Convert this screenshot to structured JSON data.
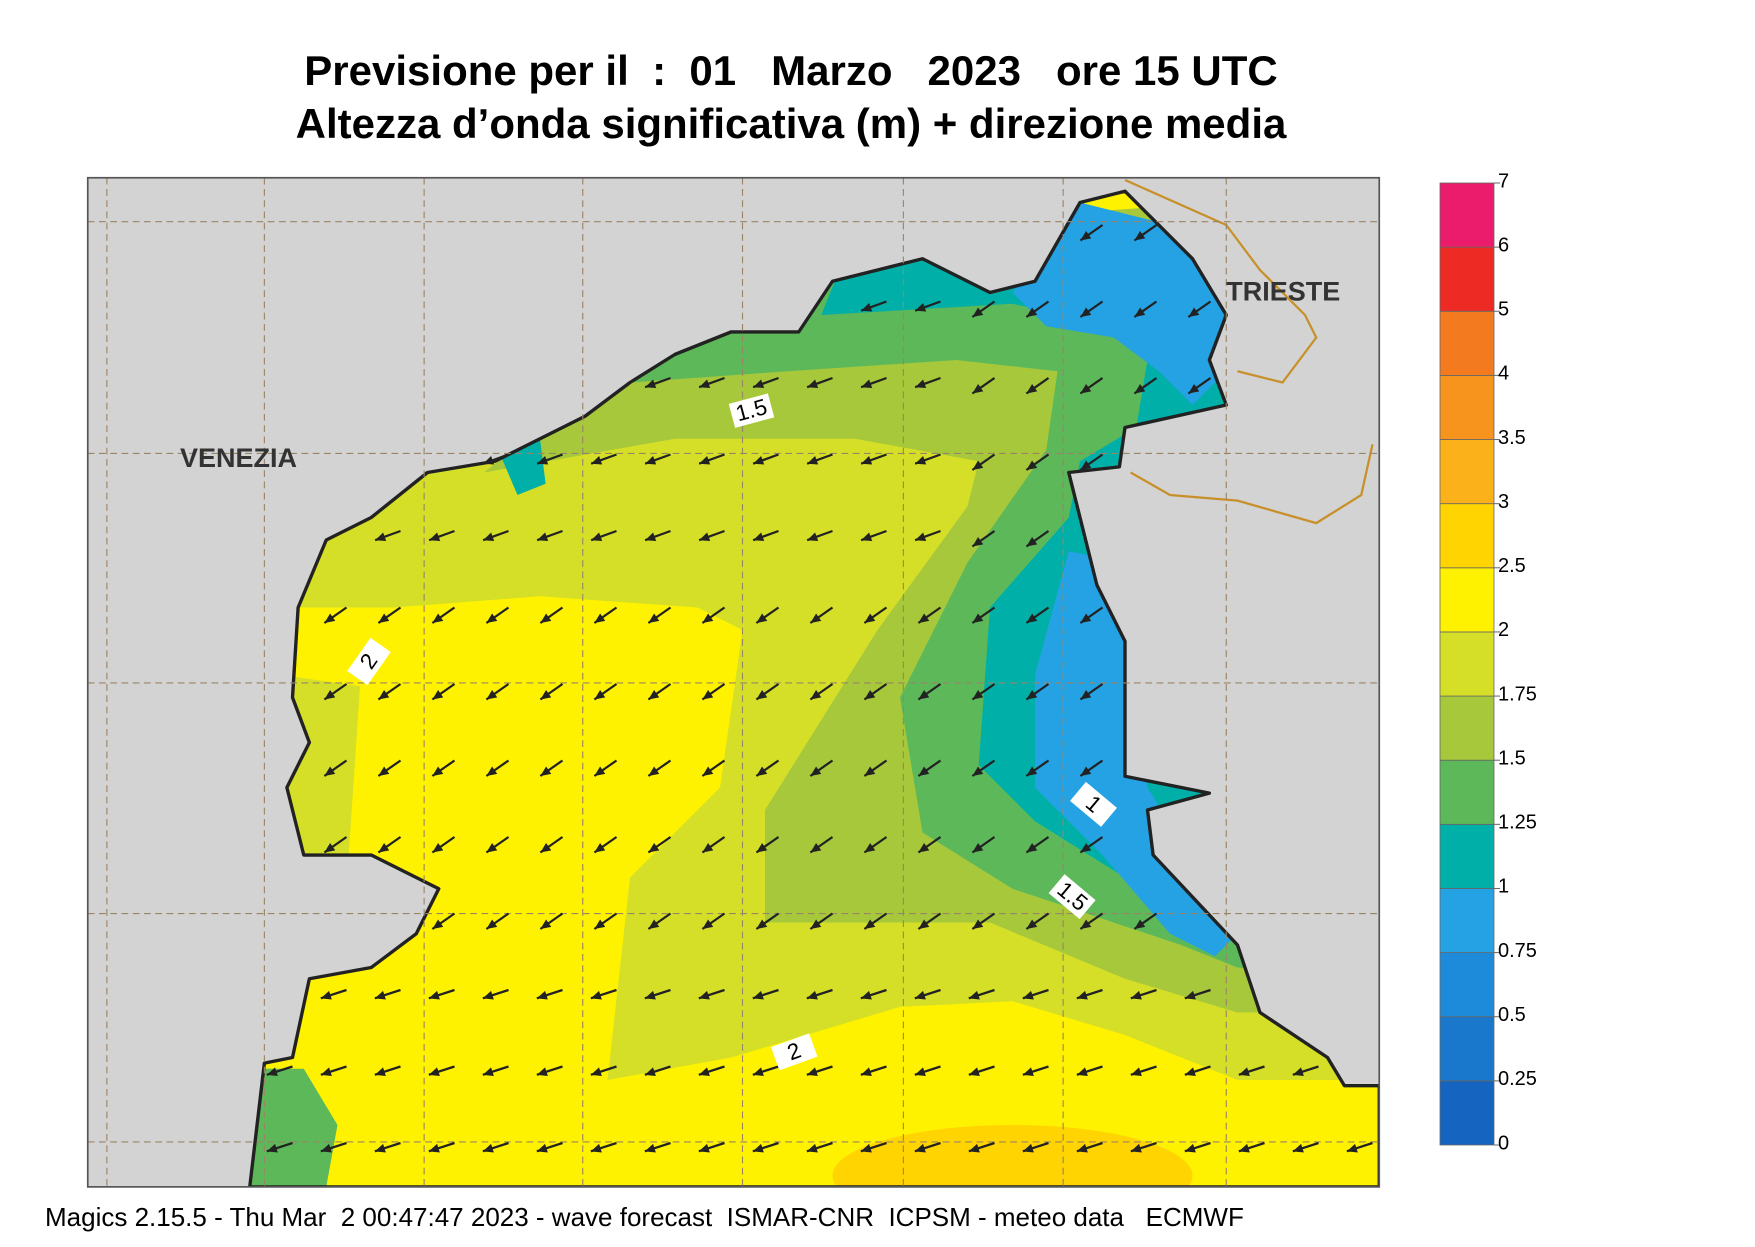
{
  "title": {
    "line1": "Previsione per il  :  01   Marzo   2023   ore 15 UTC",
    "line2": "Altezza d’onda significativa (m) + direzione media"
  },
  "map": {
    "places": [
      "VENEZIA",
      "TRIESTE"
    ],
    "contour_labels": [
      "1.5",
      "2",
      "1",
      "1.5",
      "2"
    ]
  },
  "legend": {
    "ticks": [
      0,
      0.25,
      0.5,
      0.75,
      1,
      1.25,
      1.5,
      1.75,
      2,
      2.5,
      3,
      3.5,
      4,
      5,
      6,
      7
    ],
    "colors": [
      "#1565c0",
      "#1a78cc",
      "#1e8bda",
      "#25a2e3",
      "#00b0a8",
      "#5db85a",
      "#a6c83a",
      "#d5df28",
      "#fff200",
      "#ffd400",
      "#fbb21a",
      "#f7941d",
      "#f47a20",
      "#ee2a24",
      "#ec1c6c"
    ]
  },
  "footer": "Magics 2.15.5 - Thu Mar  2 00:47:47 2023 - wave forecast  ISMAR-CNR  ICPSM - meteo data   ECMWF"
}
